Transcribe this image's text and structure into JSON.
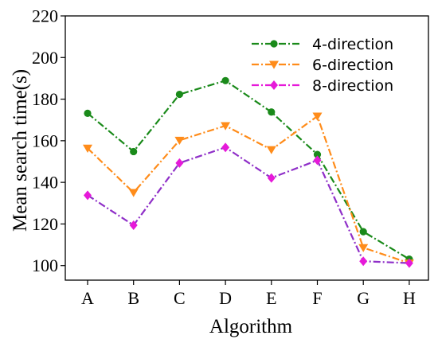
{
  "chart_data": {
    "type": "line",
    "title": "",
    "xlabel": "Algorithm",
    "ylabel": "Mean search time(s)",
    "categories": [
      "A",
      "B",
      "C",
      "D",
      "E",
      "F",
      "G",
      "H"
    ],
    "ylim": [
      93,
      220
    ],
    "yticks": [
      100,
      120,
      140,
      160,
      180,
      200,
      220
    ],
    "grid": false,
    "legend_position": "top-right",
    "series": [
      {
        "name": "4-direction",
        "color": "#1a8a1a",
        "marker": "circle",
        "linestyle": "dash-dot",
        "values": [
          173.2,
          154.8,
          182.3,
          188.9,
          173.8,
          153.4,
          116.3,
          103.1
        ]
      },
      {
        "name": "6-direction",
        "color": "#ff8c1a",
        "marker": "triangle-down",
        "linestyle": "dash-dot",
        "values": [
          156.4,
          135.1,
          160.2,
          167.2,
          155.7,
          171.8,
          108.6,
          101.2
        ]
      },
      {
        "name": "8-direction",
        "color": "#e619d9",
        "line_color": "#8f2fc8",
        "marker": "diamond",
        "linestyle": "dash-dot",
        "values": [
          133.8,
          119.4,
          149.3,
          156.8,
          142.1,
          150.6,
          102.1,
          101.2
        ]
      }
    ]
  }
}
